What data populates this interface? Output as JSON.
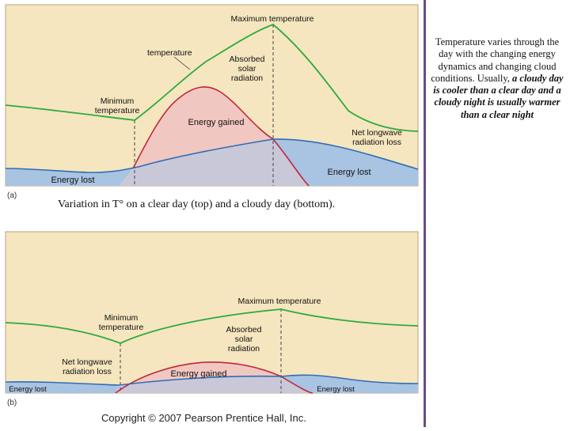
{
  "panel_a": {
    "letter": "(a)",
    "labels": {
      "max_temp": "Maximum temperature",
      "temperature": "temperature",
      "absorbed": [
        "Absorbed",
        "solar",
        "radiation"
      ],
      "min_temp": [
        "Minimum",
        "temperature"
      ],
      "energy_gained": "Energy gained",
      "net_longwave": [
        "Net longwave",
        "radiation loss"
      ],
      "energy_lost_left": "Energy lost",
      "energy_lost_right": "Energy lost"
    }
  },
  "panel_b": {
    "letter": "(b)",
    "labels": {
      "max_temp": "Maximum temperature",
      "min_temp": [
        "Minimum",
        "temperature"
      ],
      "absorbed": [
        "Absorbed",
        "solar",
        "radiation"
      ],
      "net_longwave": [
        "Net longwave",
        "radiation loss"
      ],
      "energy_gained": "Energy gained",
      "energy_lost_left": "Energy lost",
      "energy_lost_right": "Energy lost"
    }
  },
  "caption": "Variation in T° on a clear day (top) and a cloudy day (bottom).",
  "copyright": "Copyright © 2007 Pearson Prentice Hall, Inc.",
  "side_note": {
    "plain": "Temperature varies through the day with the changing energy dynamics and changing cloud conditions. Usually, ",
    "emphasis": "a cloudy day is cooler than a clear day and a cloudy night is usually warmer than a clear night"
  },
  "colors": {
    "background": "#f5e6bf",
    "temperature_line": "#2eaa3e",
    "solar_line": "#c0263a",
    "solar_fill": "#f1c7c2",
    "longwave_line": "#2f6db4",
    "longwave_fill": "#a9c3e2",
    "overlap_fill": "#c9c8d8"
  }
}
